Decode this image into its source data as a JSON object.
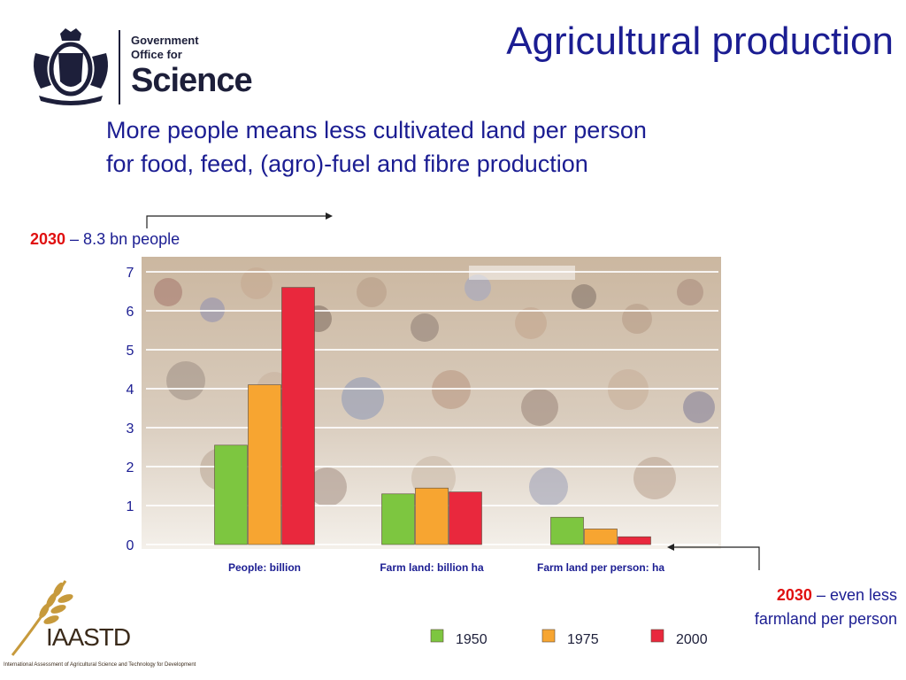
{
  "header": {
    "title": "Agricultural production",
    "subtitle_line1": "More people means less cultivated land per person",
    "subtitle_line2": "for food, feed, (agro)-fuel and fibre production"
  },
  "gov_logo": {
    "line1": "Government",
    "line2": "Office for",
    "line3": "Science"
  },
  "notes": {
    "left_year": "2030",
    "left_text": " – 8.3 bn people",
    "right_year": "2030",
    "right_text1": " – even less",
    "right_text2": "farmland per person"
  },
  "footer_logo": {
    "name": "IAASTD",
    "tagline": "International Assessment of Agricultural Science and Technology for Development"
  },
  "colors": {
    "title": "#1b1d92",
    "accent": "#e01010",
    "s1950": "#7dc640",
    "s1975": "#f7a531",
    "s2000": "#e9283d"
  },
  "chart_data": {
    "type": "bar",
    "categories": [
      "People: billion",
      "Farm land: billion ha",
      "Farm land per person: ha"
    ],
    "series": [
      {
        "name": "1950",
        "values": [
          2.55,
          1.3,
          0.7
        ]
      },
      {
        "name": "1975",
        "values": [
          4.1,
          1.45,
          0.4
        ]
      },
      {
        "name": "2000",
        "values": [
          6.6,
          1.35,
          0.2
        ]
      }
    ],
    "yticks": [
      "0",
      "1",
      "2",
      "3",
      "4",
      "5",
      "6",
      "7"
    ],
    "ylim": [
      0,
      7
    ],
    "grid": true,
    "legend": "bottom",
    "xlabel": "",
    "ylabel": "",
    "title": ""
  }
}
